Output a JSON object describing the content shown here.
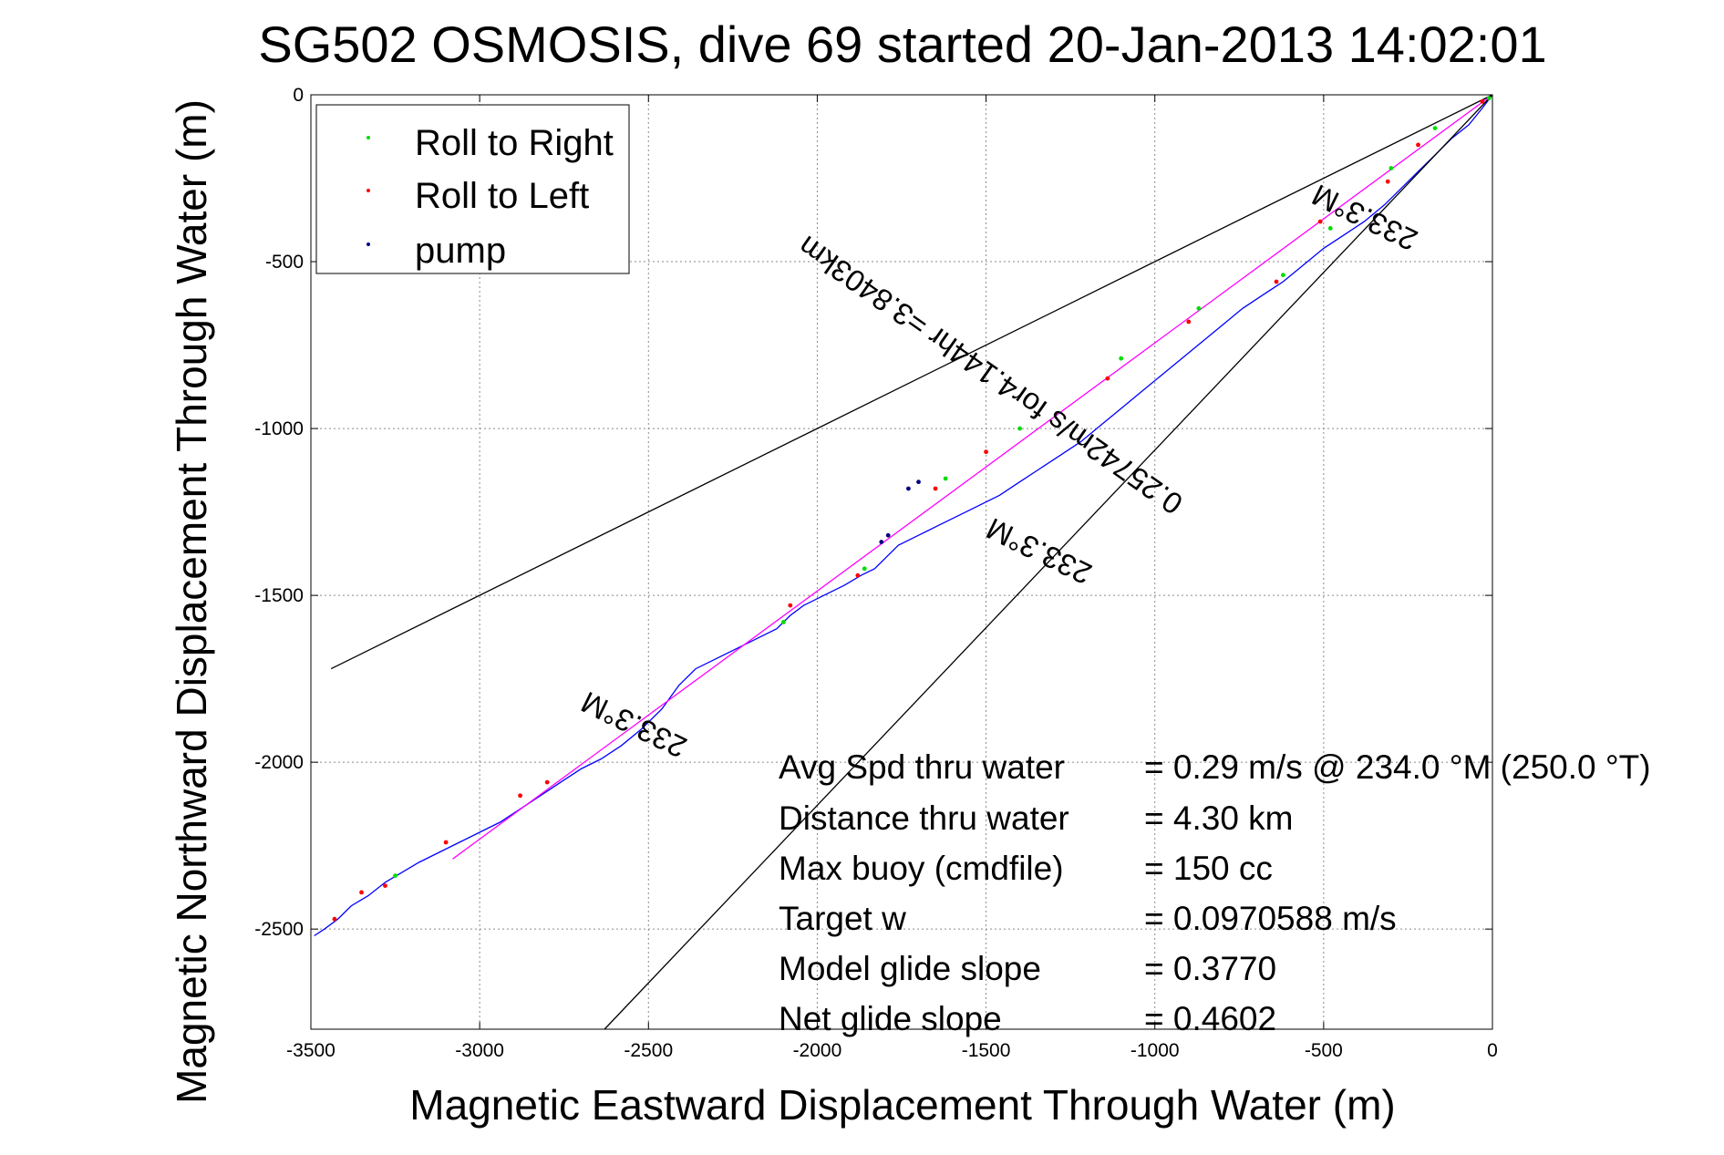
{
  "chart_data": {
    "type": "line",
    "title": "SG502 OSMOSIS, dive 69 started 20-Jan-2013 14:02:01",
    "xlabel": "Magnetic Eastward Displacement Through Water (m)",
    "ylabel": "Magnetic Northward Displacement Through Water (m)",
    "xlim": [
      -3500,
      0
    ],
    "ylim": [
      -2800,
      0
    ],
    "grid": true,
    "x_ticks": [
      -3500,
      -3000,
      -2500,
      -2000,
      -1500,
      -1000,
      -500,
      0
    ],
    "y_ticks": [
      0,
      -500,
      -1000,
      -1500,
      -2000,
      -2500
    ],
    "legend": {
      "placement": "top-left",
      "entries": [
        {
          "name": "Roll to Right",
          "color": "#00dd00"
        },
        {
          "name": "Roll to Left",
          "color": "#ff0000"
        },
        {
          "name": "pump",
          "color": "#000080"
        }
      ]
    },
    "series": [
      {
        "role": "track",
        "color": "#0000ff",
        "x": [
          0,
          -30,
          -70,
          -120,
          -170,
          -220,
          -280,
          -320,
          -380,
          -440,
          -500,
          -560,
          -620,
          -680,
          -740,
          -800,
          -860,
          -920,
          -980,
          -1040,
          -1100,
          -1160,
          -1220,
          -1280,
          -1340,
          -1400,
          -1460,
          -1520,
          -1580,
          -1640,
          -1700,
          -1760,
          -1800,
          -1830,
          -1870,
          -1920,
          -1980,
          -2040,
          -2080,
          -2120,
          -2180,
          -2240,
          -2300,
          -2360,
          -2410,
          -2460,
          -2520,
          -2580,
          -2640,
          -2700,
          -2760,
          -2820,
          -2880,
          -2940,
          -3000,
          -3060,
          -3120,
          -3180,
          -3230,
          -3280,
          -3330,
          -3380,
          -3420,
          -3460,
          -3490
        ],
        "y": [
          0,
          -40,
          -90,
          -130,
          -180,
          -230,
          -290,
          -330,
          -380,
          -420,
          -460,
          -510,
          -560,
          -600,
          -640,
          -690,
          -740,
          -790,
          -840,
          -890,
          -940,
          -990,
          -1040,
          -1080,
          -1120,
          -1160,
          -1200,
          -1230,
          -1260,
          -1290,
          -1320,
          -1350,
          -1390,
          -1420,
          -1440,
          -1470,
          -1500,
          -1530,
          -1560,
          -1600,
          -1630,
          -1660,
          -1690,
          -1720,
          -1770,
          -1840,
          -1900,
          -1950,
          -1990,
          -2020,
          -2060,
          -2100,
          -2140,
          -2180,
          -2210,
          -2240,
          -2270,
          -2300,
          -2330,
          -2360,
          -2400,
          -2430,
          -2470,
          -2500,
          -2520
        ]
      },
      {
        "role": "model-track",
        "color": "#ff00ff",
        "x": [
          0,
          -3080
        ],
        "y": [
          0,
          -2290
        ]
      },
      {
        "role": "bound-line",
        "color": "#000000",
        "x": [
          0,
          -3440
        ],
        "y": [
          0,
          -1720
        ]
      },
      {
        "role": "bound-line",
        "color": "#000000",
        "x": [
          0,
          -2630
        ],
        "y": [
          0,
          -2800
        ]
      }
    ],
    "markers": {
      "roll_right": {
        "color": "#00dd00",
        "x": [
          -10,
          -170,
          -300,
          -480,
          -620,
          -870,
          -1100,
          -1400,
          -1620,
          -1860,
          -2100,
          -3250
        ],
        "y": [
          -10,
          -100,
          -220,
          -400,
          -540,
          -640,
          -790,
          -1000,
          -1150,
          -1420,
          -1580,
          -2340
        ]
      },
      "roll_left": {
        "color": "#ff0000",
        "x": [
          -30,
          -220,
          -310,
          -510,
          -640,
          -900,
          -1140,
          -1500,
          -1650,
          -1880,
          -2080,
          -2800,
          -2880,
          -3100,
          -3280,
          -3350,
          -3430
        ],
        "y": [
          -20,
          -150,
          -260,
          -380,
          -560,
          -680,
          -850,
          -1070,
          -1180,
          -1440,
          -1530,
          -2060,
          -2100,
          -2240,
          -2370,
          -2390,
          -2470
        ]
      },
      "pump": {
        "color": "#000080",
        "x": [
          -1700,
          -1730,
          -1790,
          -1810
        ],
        "y": [
          -1160,
          -1180,
          -1320,
          -1340
        ]
      }
    },
    "annotations": [
      {
        "text": "233.3°M",
        "x": -2530,
        "y": -1860,
        "angle": 206
      },
      {
        "text": "233.3°M",
        "x": -1330,
        "y": -1340,
        "angle": 206
      },
      {
        "text": "233.3°M",
        "x": -365,
        "y": -340,
        "angle": 206
      },
      {
        "text": "0.25742m/s for4.144hr =3.8403km",
        "x": -1470,
        "y": -815,
        "angle": 215
      }
    ]
  },
  "stats": [
    {
      "label": "Avg Spd thru water",
      "value": "=  0.29 m/s @ 234.0 °M (250.0 °T)"
    },
    {
      "label": "Distance thru water",
      "value": "=  4.30 km"
    },
    {
      "label": "Max buoy (cmdfile)",
      "value": "= 150 cc"
    },
    {
      "label": "Target w",
      "value": "= 0.0970588 m/s"
    },
    {
      "label": "Model glide slope",
      "value": "= 0.3770"
    },
    {
      "label": "Net glide slope",
      "value": "= 0.4602"
    }
  ]
}
